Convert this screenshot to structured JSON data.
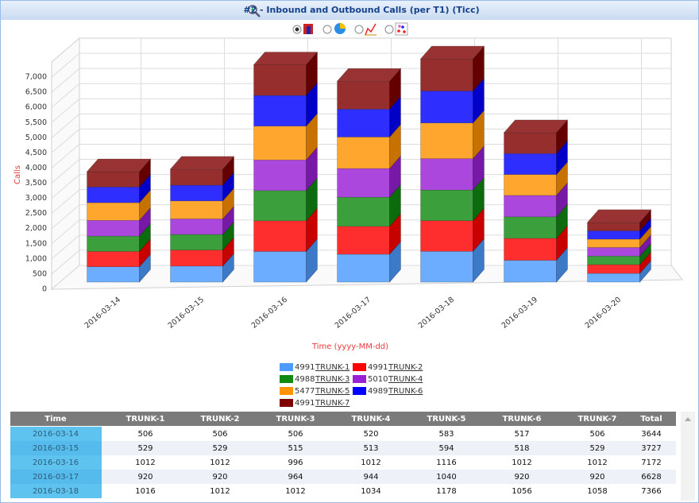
{
  "window": {
    "title": "#2 - Inbound and Outbound Calls (per T1) (Ticc)"
  },
  "chart_data": {
    "type": "bar3d_stacked",
    "y_label": "Calls",
    "x_label": "Time (yyyy-MM-dd)",
    "categories": [
      "2016-03-14",
      "2016-03-15",
      "2016-03-16",
      "2016-03-17",
      "2016-03-18",
      "2016-03-19",
      "2016-03-20"
    ],
    "series": [
      {
        "name": "TRUNK-1",
        "total": 4991,
        "color": "#4d9bff",
        "values": [
          506,
          529,
          1012,
          920,
          1016,
          720,
          288
        ]
      },
      {
        "name": "TRUNK-2",
        "total": 4991,
        "color": "#ff0000",
        "values": [
          506,
          529,
          1012,
          920,
          1012,
          724,
          288
        ]
      },
      {
        "name": "TRUNK-3",
        "total": 4988,
        "color": "#108a10",
        "values": [
          506,
          515,
          996,
          964,
          1012,
          712,
          283
        ]
      },
      {
        "name": "TRUNK-4",
        "total": 5010,
        "color": "#9a1fd6",
        "values": [
          520,
          513,
          1012,
          944,
          1034,
          705,
          282
        ]
      },
      {
        "name": "TRUNK-5",
        "total": 5477,
        "color": "#ff9300",
        "values": [
          583,
          594,
          1116,
          1040,
          1178,
          690,
          276
        ]
      },
      {
        "name": "TRUNK-6",
        "total": 4989,
        "color": "#0000ff",
        "values": [
          517,
          518,
          1012,
          920,
          1056,
          690,
          276
        ]
      },
      {
        "name": "TRUNK-7",
        "total": 4991,
        "color": "#800000",
        "values": [
          506,
          529,
          1012,
          920,
          1058,
          690,
          276
        ]
      }
    ],
    "ylim": [
      0,
      7500
    ],
    "yticks": [
      0,
      500,
      {
        "value": 1000,
        "label": "1,000"
      },
      {
        "value": 1500,
        "label": "1,500"
      },
      {
        "value": 2000,
        "label": "2,000"
      },
      {
        "value": 2500,
        "label": "2,500"
      },
      {
        "value": 3000,
        "label": "3,000"
      },
      {
        "value": 3500,
        "label": "3,500"
      },
      {
        "value": 4000,
        "label": "4,000"
      },
      {
        "value": 4500,
        "label": "4,500"
      },
      {
        "value": 5000,
        "label": "5,000"
      },
      {
        "value": 5500,
        "label": "5,500"
      },
      {
        "value": 6000,
        "label": "6,000"
      },
      {
        "value": 6500,
        "label": "6,500"
      },
      {
        "value": 7000,
        "label": "7,000"
      }
    ],
    "grid": true
  },
  "table": {
    "header_time": "Time",
    "header_total": "Total",
    "totals": [
      3644,
      3727,
      7172,
      6628,
      7366
    ]
  }
}
